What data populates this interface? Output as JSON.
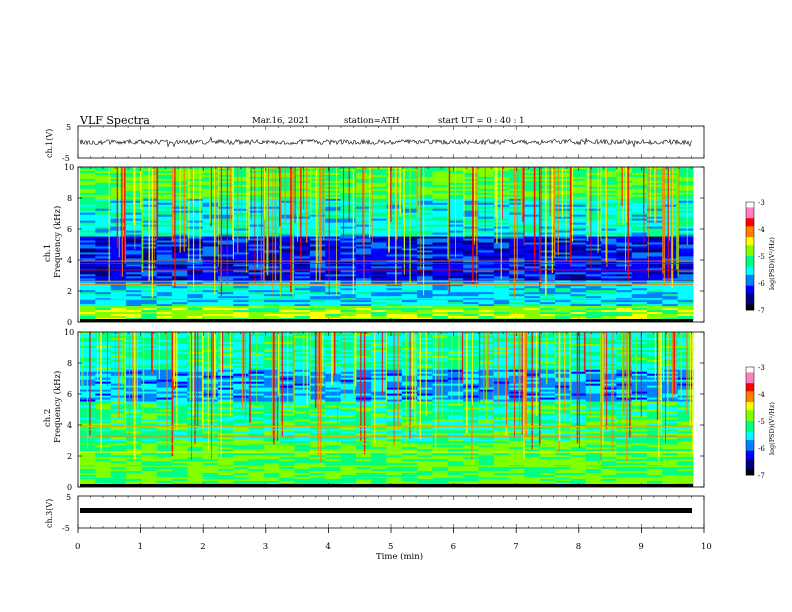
{
  "header": {
    "title": "VLF  Spectra",
    "date": "Mar.16, 2021",
    "station": "station=ATH",
    "start": "start  UT  =   0 : 40 : 1"
  },
  "chart_data": [
    {
      "type": "line",
      "panel": "ch1-waveform",
      "ylabel": "ch.1(V)",
      "yticks": [
        "5",
        "-5"
      ],
      "ylim": [
        -5,
        5
      ],
      "xlim": [
        0,
        10
      ],
      "description_level": 0,
      "series_color": "#000000"
    },
    {
      "type": "heatmap",
      "panel": "ch1-spectrogram",
      "ylabel": "ch.1\nFrequency  (kHz)",
      "ylabel_lines": [
        "ch.1",
        "Frequency  (kHz)"
      ],
      "yticks": [
        "0",
        "2",
        "4",
        "6",
        "8",
        "10"
      ],
      "ylim": [
        0,
        10
      ],
      "xlim": [
        0,
        9.8
      ],
      "colorbar": {
        "label": "log(PSD)(V²/Hz)",
        "ticks": [
          "-3",
          "-4",
          "-5",
          "-6",
          "-7"
        ],
        "range": [
          -7,
          -3
        ]
      }
    },
    {
      "type": "heatmap",
      "panel": "ch2-spectrogram",
      "ylabel": "ch.2\nFrequency  (kHz)",
      "ylabel_lines": [
        "ch.2",
        "Frequency  (kHz)"
      ],
      "yticks": [
        "0",
        "2",
        "4",
        "6",
        "8",
        "10"
      ],
      "ylim": [
        0,
        10
      ],
      "xlim": [
        0,
        9.8
      ],
      "colorbar": {
        "label": "log(PSD)(V²/Hz)",
        "ticks": [
          "-3",
          "-4",
          "-5",
          "-6",
          "-7"
        ],
        "range": [
          -7,
          -3
        ]
      }
    },
    {
      "type": "line",
      "panel": "ch3-waveform",
      "ylabel": "ch.3(V)",
      "yticks": [
        "5",
        "-5"
      ],
      "ylim": [
        -5,
        5
      ],
      "xlim": [
        0,
        10
      ],
      "series_color": "#000000"
    }
  ],
  "xaxis": {
    "label": "Time  (min)",
    "ticks": [
      "0",
      "1",
      "2",
      "3",
      "4",
      "5",
      "6",
      "7",
      "8",
      "9",
      "10"
    ]
  },
  "colormap": [
    "#000000",
    "#00007f",
    "#0000ff",
    "#0080ff",
    "#00ffff",
    "#00ff80",
    "#80ff00",
    "#ffff00",
    "#ff8000",
    "#ff0000",
    "#ff80c0",
    "#ffffff"
  ]
}
